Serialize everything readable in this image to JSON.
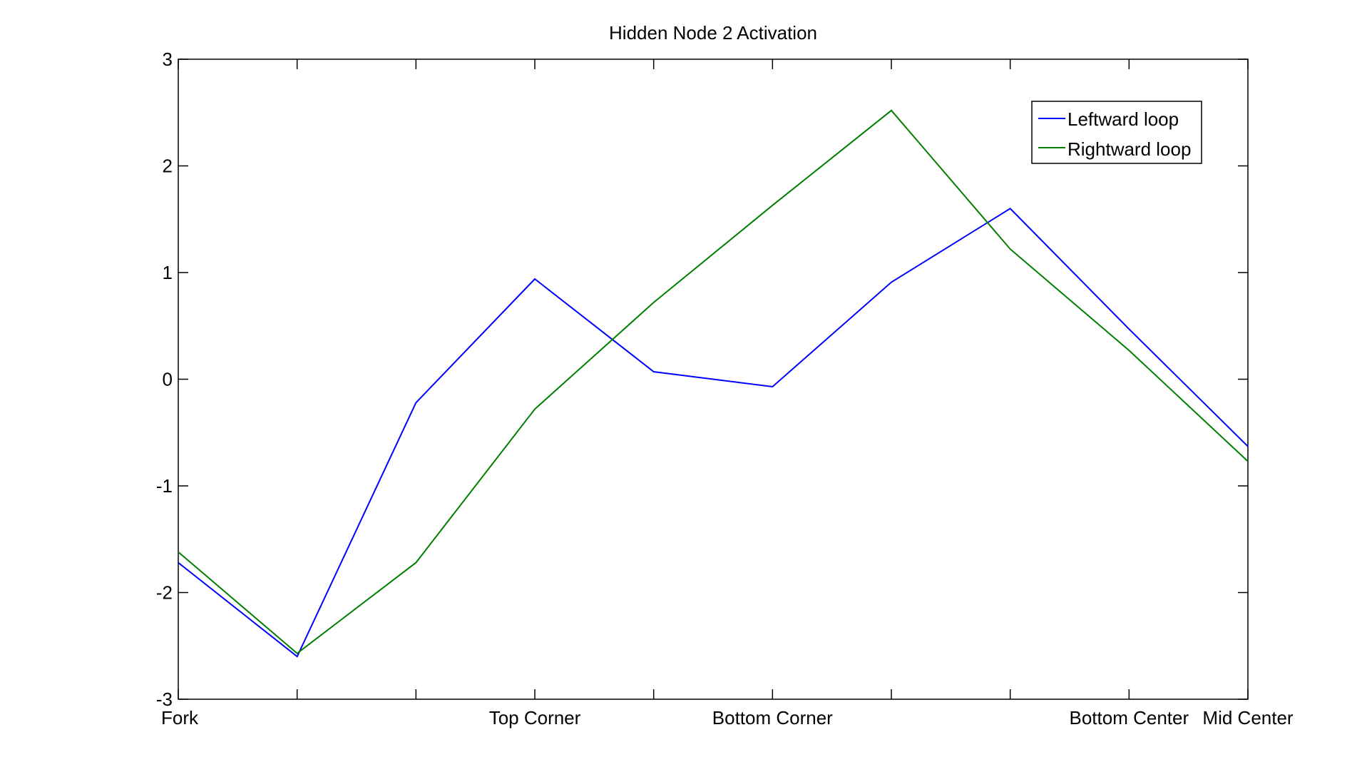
{
  "chart_data": {
    "type": "line",
    "title": "Hidden Node 2 Activation",
    "xlabel": "",
    "ylabel": "",
    "x": [
      1,
      2,
      3,
      4,
      5,
      6,
      7,
      8,
      9,
      10
    ],
    "xlim": [
      1,
      10
    ],
    "ylim": [
      -3,
      3
    ],
    "yticks": [
      -3,
      -2,
      -1,
      0,
      1,
      2,
      3
    ],
    "ytick_labels": [
      "-3",
      "-2",
      "-1",
      "0",
      "1",
      "2",
      "3"
    ],
    "xtick_labels": [
      {
        "x": 1,
        "label": "Fork"
      },
      {
        "x": 4,
        "label": "Top Corner"
      },
      {
        "x": 6,
        "label": "Bottom Corner"
      },
      {
        "x": 9,
        "label": "Bottom Center"
      },
      {
        "x": 10,
        "label": "Mid Center"
      }
    ],
    "grid": false,
    "legend_position": "top-right",
    "series": [
      {
        "name": "Leftward loop",
        "color": "#0000ff",
        "values": [
          -1.72,
          -2.6,
          -0.22,
          0.94,
          0.07,
          -0.07,
          0.91,
          1.6,
          0.47,
          -0.63
        ]
      },
      {
        "name": "Rightward loop",
        "color": "#007f00",
        "values": [
          -1.62,
          -2.57,
          -1.72,
          -0.28,
          0.72,
          1.63,
          2.52,
          1.22,
          0.27,
          -0.77
        ]
      }
    ]
  }
}
